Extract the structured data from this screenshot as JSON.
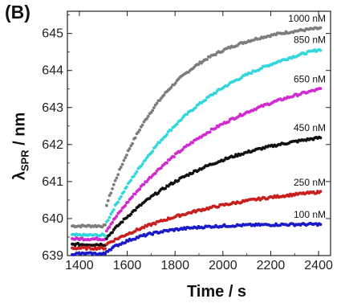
{
  "panel_label": "(B)",
  "chart_data": {
    "type": "scatter",
    "title": "",
    "xlabel": "Time / s",
    "ylabel_main": "λ",
    "ylabel_sub": "SPR",
    "ylabel_unit": " / nm",
    "xlim": [
      1350,
      2450
    ],
    "ylim": [
      639,
      645.6
    ],
    "xticks": [
      1400,
      1600,
      1800,
      2000,
      2200,
      2400
    ],
    "yticks": [
      639,
      640,
      641,
      642,
      643,
      644,
      645
    ],
    "injection_time": 1510,
    "series": [
      {
        "name": "1000 nM",
        "color": "#7d7d7d",
        "baseline": 639.8,
        "jump": 0.5,
        "plateau": 645.3,
        "tau": 260
      },
      {
        "name": "850 nM",
        "color": "#33d6dc",
        "baseline": 639.55,
        "jump": 0.3,
        "plateau": 645.2,
        "tau": 420
      },
      {
        "name": "650 nM",
        "color": "#d02ad0",
        "baseline": 639.45,
        "jump": 0.2,
        "plateau": 644.2,
        "tau": 480
      },
      {
        "name": "450 nM",
        "color": "#111111",
        "baseline": 639.3,
        "jump": 0.15,
        "plateau": 642.55,
        "tau": 420
      },
      {
        "name": "250 nM",
        "color": "#c81e1e",
        "baseline": 639.2,
        "jump": 0.1,
        "plateau": 641.0,
        "tau": 500
      },
      {
        "name": "100 nM",
        "color": "#1a1ac8",
        "baseline": 639.05,
        "jump": 0.05,
        "plateau": 639.85,
        "tau": 180
      }
    ]
  }
}
